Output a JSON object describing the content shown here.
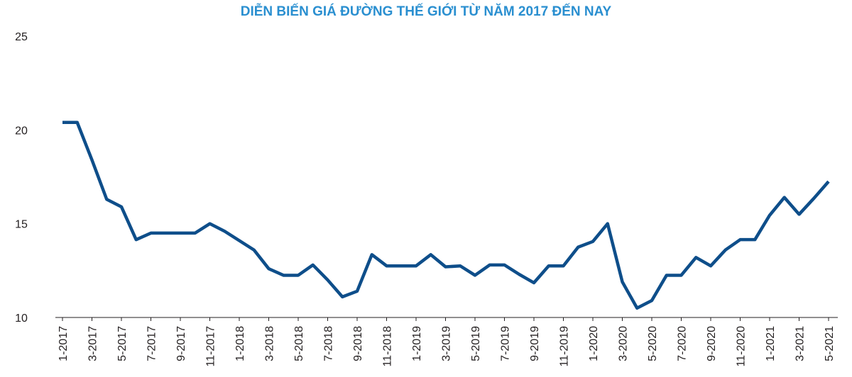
{
  "chart_data": {
    "type": "line",
    "title": "DIỄN BIẾN GIÁ ĐƯỜNG THẾ GIỚI TỪ NĂM 2017 ĐẾN NAY",
    "categories": [
      "1-2017",
      null,
      "3-2017",
      null,
      "5-2017",
      null,
      "7-2017",
      null,
      "9-2017",
      null,
      "11-2017",
      null,
      "1-2018",
      null,
      "3-2018",
      null,
      "5-2018",
      null,
      "7-2018",
      null,
      "9-2018",
      null,
      "11-2018",
      null,
      "1-2019",
      null,
      "3-2019",
      null,
      "5-2019",
      null,
      "7-2019",
      null,
      "9-2019",
      null,
      "11-2019",
      null,
      "1-2020",
      null,
      "3-2020",
      null,
      "5-2020",
      null,
      "7-2020",
      null,
      "9-2020",
      null,
      "11-2020",
      null,
      "1-2021",
      null,
      "3-2021",
      null,
      "5-2021"
    ],
    "values": [
      20.4,
      20.4,
      18.4,
      16.3,
      15.9,
      14.15,
      14.5,
      14.5,
      14.5,
      14.5,
      15.0,
      14.6,
      14.1,
      13.6,
      12.6,
      12.25,
      12.25,
      12.8,
      12.0,
      11.1,
      11.4,
      13.35,
      12.75,
      12.75,
      12.75,
      13.35,
      12.7,
      12.75,
      12.25,
      12.8,
      12.8,
      12.3,
      11.85,
      12.75,
      12.75,
      13.75,
      14.05,
      15.0,
      11.9,
      10.5,
      10.9,
      12.25,
      12.25,
      13.2,
      12.75,
      13.6,
      14.15,
      14.15,
      15.45,
      16.4,
      15.5,
      16.35,
      17.25
    ],
    "color": "#0e4e8a",
    "ylim": [
      10,
      25
    ],
    "yticks": [
      10,
      15,
      20,
      25
    ],
    "grid": false
  }
}
